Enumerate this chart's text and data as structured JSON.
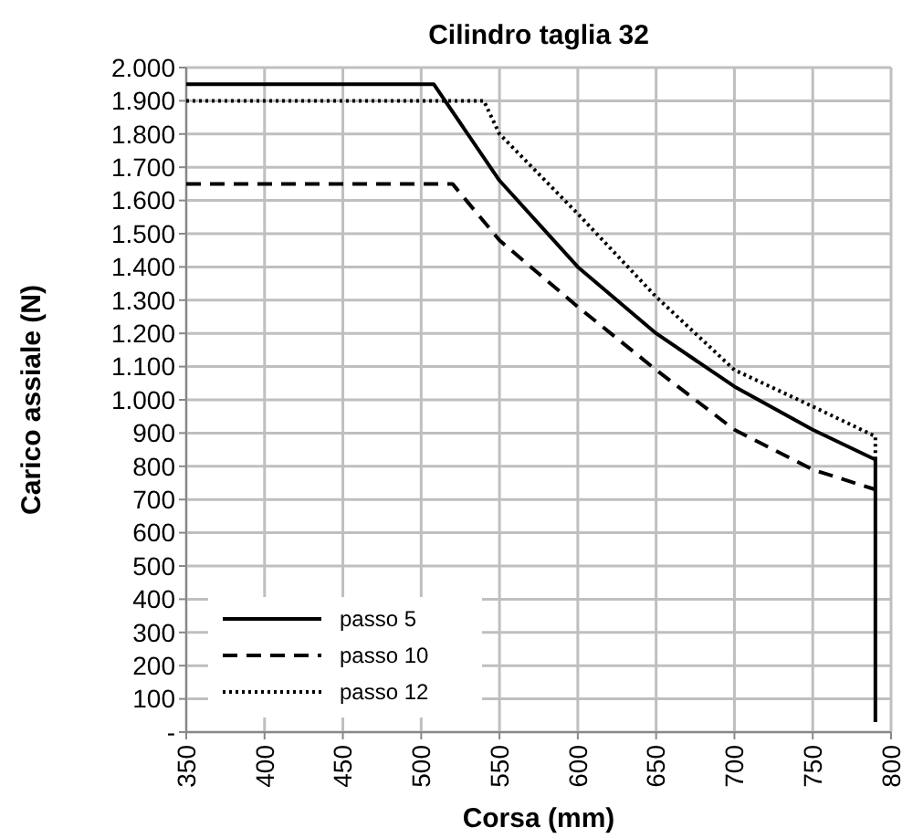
{
  "chart_data": {
    "type": "line",
    "title": "Cilindro taglia 32",
    "xlabel": "Corsa (mm)",
    "ylabel": "Carico assiale (N)",
    "xlim": [
      350,
      800
    ],
    "xticks": [
      350,
      400,
      450,
      500,
      550,
      600,
      650,
      700,
      750,
      800
    ],
    "ylim": [
      0,
      2000
    ],
    "yticks": [
      {
        "value": 0,
        "label": "-"
      },
      100,
      200,
      300,
      400,
      500,
      600,
      700,
      800,
      900,
      {
        "value": 1000,
        "label": "1.000"
      },
      {
        "value": 1100,
        "label": "1.100"
      },
      {
        "value": 1200,
        "label": "1.200"
      },
      {
        "value": 1300,
        "label": "1.300"
      },
      {
        "value": 1400,
        "label": "1.400"
      },
      {
        "value": 1500,
        "label": "1.500"
      },
      {
        "value": 1600,
        "label": "1.600"
      },
      {
        "value": 1700,
        "label": "1.700"
      },
      {
        "value": 1800,
        "label": "1.800"
      },
      {
        "value": 1900,
        "label": "1.900"
      },
      {
        "value": 2000,
        "label": "2.000"
      }
    ],
    "grid": true,
    "legend": "bottom left",
    "marker": "none",
    "series": [
      {
        "name": "passo 5",
        "color": "#000000",
        "line_style": "solid",
        "x": [
          350,
          508,
          550,
          600,
          650,
          700,
          750,
          790,
          790
        ],
        "values": [
          1950,
          1950,
          1660,
          1400,
          1200,
          1040,
          910,
          820,
          30
        ]
      },
      {
        "name": "passo 10",
        "color": "#000000",
        "line_style": "dashed",
        "x": [
          350,
          520,
          550,
          600,
          650,
          700,
          750,
          790
        ],
        "values": [
          1650,
          1650,
          1480,
          1280,
          1090,
          910,
          790,
          730
        ]
      },
      {
        "name": "passo 12",
        "color": "#000000",
        "line_style": "dotted",
        "x": [
          350,
          540,
          550,
          600,
          650,
          700,
          750,
          790,
          790
        ],
        "values": [
          1900,
          1900,
          1800,
          1560,
          1310,
          1090,
          980,
          890,
          820
        ]
      }
    ]
  }
}
